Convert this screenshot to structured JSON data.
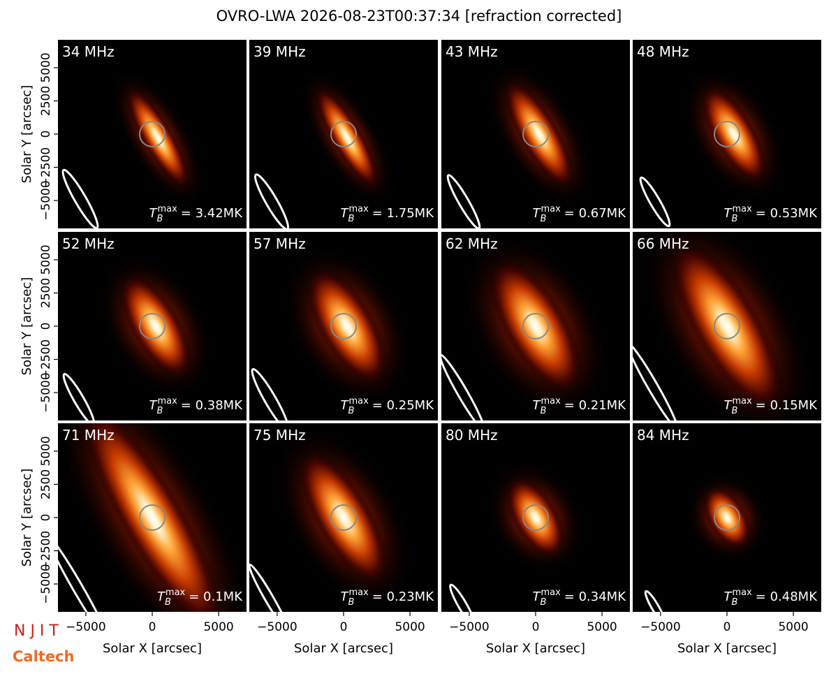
{
  "chart_data": {
    "type": "image_grid",
    "title": "OVRO-LWA 2026-08-23T00:37:34 [refraction corrected]",
    "xlabel": "Solar X [arcsec]",
    "ylabel": "Solar Y [arcsec]",
    "xlim": [
      -7100,
      7100
    ],
    "ylim": [
      -7100,
      7100
    ],
    "xticks": [
      {
        "value": -5000,
        "label": "−5000"
      },
      0,
      5000
    ],
    "yticks": [
      {
        "value": -5000,
        "label": "−5000"
      },
      {
        "value": -2500,
        "label": "−2500"
      },
      0,
      2500,
      5000
    ],
    "tmax_symbol": "T",
    "tmax_sub": "B",
    "tmax_sup": "max",
    "panels": [
      {
        "label": "34 MHz",
        "tmax": "= 3.42MK"
      },
      {
        "label": "39 MHz",
        "tmax": "= 1.75MK"
      },
      {
        "label": "43 MHz",
        "tmax": "= 0.67MK"
      },
      {
        "label": "48 MHz",
        "tmax": "= 0.53MK"
      },
      {
        "label": "52 MHz",
        "tmax": "= 0.38MK"
      },
      {
        "label": "57 MHz",
        "tmax": "= 0.25MK"
      },
      {
        "label": "62 MHz",
        "tmax": "= 0.21MK"
      },
      {
        "label": "66 MHz",
        "tmax": "= 0.15MK"
      },
      {
        "label": "71 MHz",
        "tmax": "= 0.1MK"
      },
      {
        "label": "75 MHz",
        "tmax": "= 0.23MK"
      },
      {
        "label": "80 MHz",
        "tmax": "= 0.34MK"
      },
      {
        "label": "84 MHz",
        "tmax": "= 0.48MK"
      }
    ]
  },
  "logos": [
    "N J I T",
    "Caltech"
  ]
}
